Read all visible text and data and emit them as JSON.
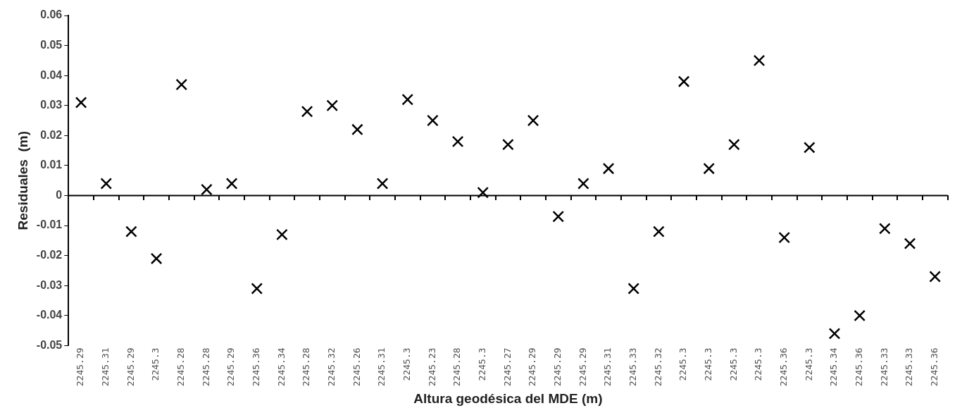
{
  "chart_data": {
    "type": "scatter",
    "xlabel": "Altura geodésica del MDE (m)",
    "ylabel": "Residuales  (m)",
    "categories": [
      "2245.29",
      "2245.31",
      "2245.29",
      "2245.3",
      "2245.28",
      "2245.28",
      "2245.29",
      "2245.36",
      "2245.34",
      "2245.28",
      "2245.32",
      "2245.26",
      "2245.31",
      "2245.3",
      "2245.23",
      "2245.28",
      "2245.3",
      "2245.27",
      "2245.29",
      "2245.29",
      "2245.29",
      "2245.31",
      "2245.33",
      "2245.32",
      "2245.3",
      "2245.3",
      "2245.3",
      "2245.3",
      "2245.36",
      "2245.3",
      "2245.34",
      "2245.36",
      "2245.33",
      "2245.33",
      "2245.36"
    ],
    "series": [
      {
        "color": "#000000",
        "values": [
          0.031,
          0.004,
          -0.012,
          -0.021,
          0.037,
          0.002,
          0.004,
          -0.031,
          -0.013,
          0.028,
          0.03,
          0.022,
          0.004,
          0.032,
          0.025,
          0.018,
          0.001,
          0.017,
          0.025,
          -0.007,
          0.004,
          0.009,
          -0.031,
          -0.012,
          0.038,
          0.009,
          0.017,
          0.045,
          -0.014,
          0.016,
          -0.046,
          -0.04,
          -0.011,
          -0.016,
          -0.027
        ]
      }
    ],
    "ylim": [
      -0.05,
      0.06
    ],
    "yticks": [
      -0.05,
      -0.04,
      -0.03,
      -0.02,
      -0.01,
      0,
      0.01,
      0.02,
      0.03,
      0.04,
      0.05,
      0.06
    ],
    "ref_lines": [
      {
        "axis": "y",
        "value": 0,
        "color": "#000000"
      }
    ],
    "marker": "cross",
    "grid": false,
    "legend": false
  }
}
